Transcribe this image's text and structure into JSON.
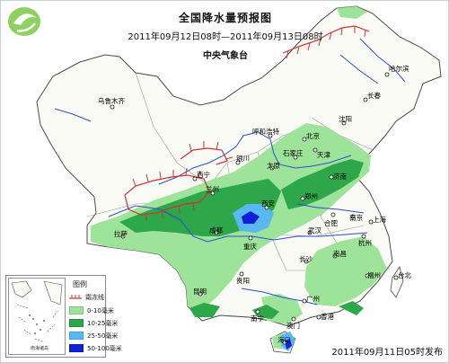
{
  "header": {
    "title": "全国降水量预报图",
    "date_range": "2011年09月12日08时—2011年09月13日08时",
    "agency": "中央气象台"
  },
  "issued": "2011年09月11日05时发布",
  "legend": {
    "title": "图例",
    "items": [
      {
        "label": "霜冻线",
        "color": "#cc3333"
      },
      {
        "label": "0-10毫米",
        "color": "#9ee39a"
      },
      {
        "label": "10-25毫米",
        "color": "#2ea64a"
      },
      {
        "label": "25-50毫米",
        "color": "#5ab8f0"
      },
      {
        "label": "50-100毫米",
        "color": "#1020d8"
      }
    ],
    "inset_label": "南海诸岛"
  },
  "cities": [
    {
      "name": "哈尔滨"
    },
    {
      "name": "长春"
    },
    {
      "name": "沈阳"
    },
    {
      "name": "乌鲁木齐"
    },
    {
      "name": "呼和浩特"
    },
    {
      "name": "北京"
    },
    {
      "name": "天津"
    },
    {
      "name": "石家庄"
    },
    {
      "name": "太原"
    },
    {
      "name": "银川"
    },
    {
      "name": "西宁"
    },
    {
      "name": "兰州"
    },
    {
      "name": "济南"
    },
    {
      "name": "郑州"
    },
    {
      "name": "西安"
    },
    {
      "name": "合肥"
    },
    {
      "name": "南京"
    },
    {
      "name": "上海"
    },
    {
      "name": "杭州"
    },
    {
      "name": "武汉"
    },
    {
      "name": "成都"
    },
    {
      "name": "重庆"
    },
    {
      "name": "拉萨"
    },
    {
      "name": "长沙"
    },
    {
      "name": "南昌"
    },
    {
      "name": "福州"
    },
    {
      "name": "台北"
    },
    {
      "name": "贵阳"
    },
    {
      "name": "昆明"
    },
    {
      "name": "南宁"
    },
    {
      "name": "广州"
    },
    {
      "name": "香港"
    },
    {
      "name": "澳门"
    },
    {
      "name": "海口"
    }
  ]
}
